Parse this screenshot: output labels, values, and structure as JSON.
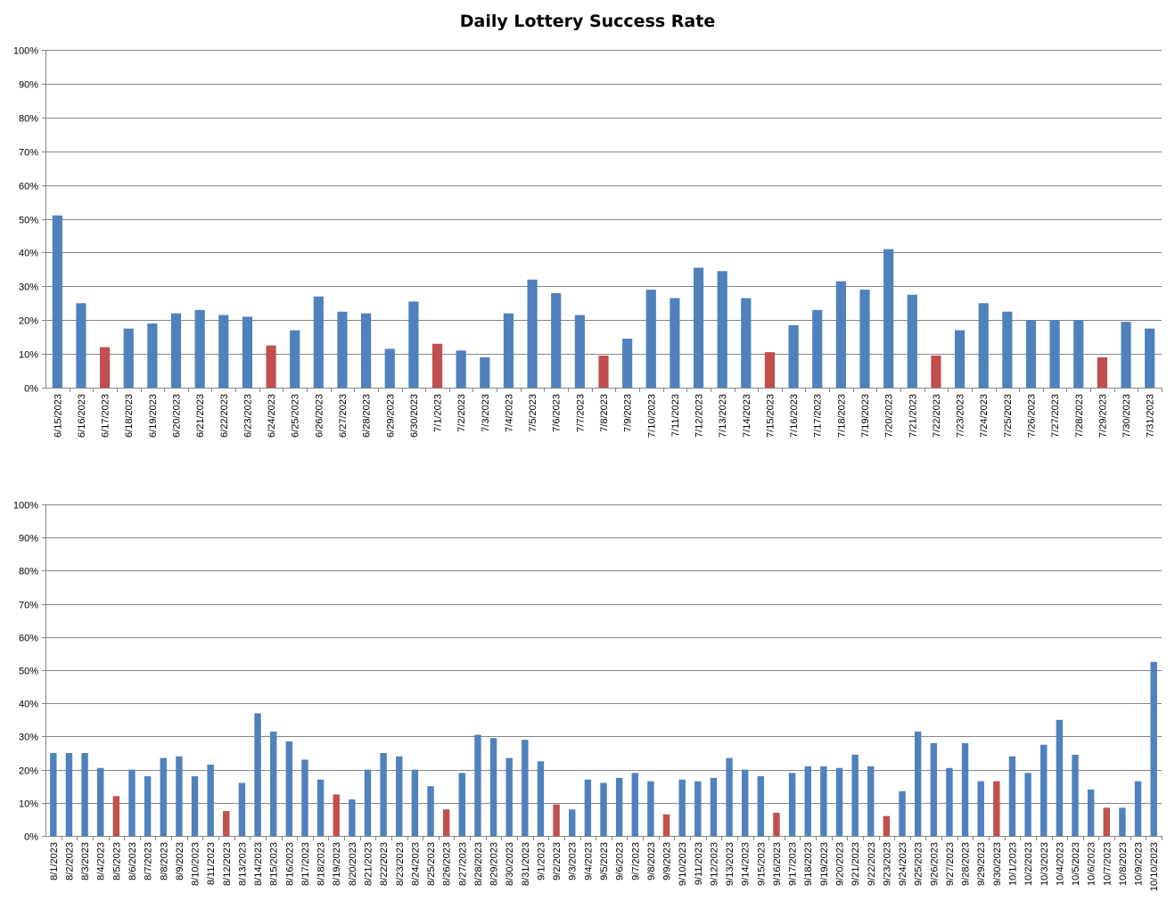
{
  "chart_data": [
    {
      "type": "bar",
      "title": "Daily Lottery Success Rate",
      "ylim": [
        0,
        100
      ],
      "yticks": [
        "0%",
        "10%",
        "20%",
        "30%",
        "40%",
        "50%",
        "60%",
        "70%",
        "80%",
        "90%",
        "100%"
      ],
      "grid": true,
      "colors": {
        "normal": "#4f81bd",
        "highlight": "#c0504d"
      },
      "categories": [
        "6/15/2023",
        "6/16/2023",
        "6/17/2023",
        "6/18/2023",
        "6/19/2023",
        "6/20/2023",
        "6/21/2023",
        "6/22/2023",
        "6/23/2023",
        "6/24/2023",
        "6/25/2023",
        "6/26/2023",
        "6/27/2023",
        "6/28/2023",
        "6/29/2023",
        "6/30/2023",
        "7/1/2023",
        "7/2/2023",
        "7/3/2023",
        "7/4/2023",
        "7/5/2023",
        "7/6/2023",
        "7/7/2023",
        "7/8/2023",
        "7/9/2023",
        "7/10/2023",
        "7/11/2023",
        "7/12/2023",
        "7/13/2023",
        "7/14/2023",
        "7/15/2023",
        "7/16/2023",
        "7/17/2023",
        "7/18/2023",
        "7/19/2023",
        "7/20/2023",
        "7/21/2023",
        "7/22/2023",
        "7/23/2023",
        "7/24/2023",
        "7/25/2023",
        "7/26/2023",
        "7/27/2023",
        "7/28/2023",
        "7/29/2023",
        "7/30/2023",
        "7/31/2023"
      ],
      "values": [
        51,
        25,
        12,
        17.5,
        19,
        22,
        23,
        21.5,
        21,
        12.5,
        17,
        27,
        22.5,
        22,
        11.5,
        25.5,
        13,
        11,
        9,
        22,
        32,
        28,
        21.5,
        9.5,
        14.5,
        29,
        26.5,
        35.5,
        34.5,
        26.5,
        10.5,
        18.5,
        23,
        31.5,
        29,
        41,
        27.5,
        9.5,
        17,
        25,
        22.5,
        20,
        20,
        20,
        9,
        19.5,
        17.5
      ],
      "highlight": [
        false,
        false,
        true,
        false,
        false,
        false,
        false,
        false,
        false,
        true,
        false,
        false,
        false,
        false,
        false,
        false,
        true,
        false,
        false,
        false,
        false,
        false,
        false,
        true,
        false,
        false,
        false,
        false,
        false,
        false,
        true,
        false,
        false,
        false,
        false,
        false,
        false,
        true,
        false,
        false,
        false,
        false,
        false,
        false,
        true,
        false,
        false
      ]
    },
    {
      "type": "bar",
      "ylim": [
        0,
        100
      ],
      "yticks": [
        "0%",
        "10%",
        "20%",
        "30%",
        "40%",
        "50%",
        "60%",
        "70%",
        "80%",
        "90%",
        "100%"
      ],
      "grid": true,
      "colors": {
        "normal": "#4f81bd",
        "highlight": "#c0504d"
      },
      "categories": [
        "8/1/2023",
        "8/2/2023",
        "8/3/2023",
        "8/4/2023",
        "8/5/2023",
        "8/6/2023",
        "8/7/2023",
        "8/8/2023",
        "8/9/2023",
        "8/10/2023",
        "8/11/2023",
        "8/12/2023",
        "8/13/2023",
        "8/14/2023",
        "8/15/2023",
        "8/16/2023",
        "8/17/2023",
        "8/18/2023",
        "8/19/2023",
        "8/20/2023",
        "8/21/2023",
        "8/22/2023",
        "8/23/2023",
        "8/24/2023",
        "8/25/2023",
        "8/26/2023",
        "8/27/2023",
        "8/28/2023",
        "8/29/2023",
        "8/30/2023",
        "8/31/2023",
        "9/1/2023",
        "9/2/2023",
        "9/3/2023",
        "9/4/2023",
        "9/5/2023",
        "9/6/2023",
        "9/7/2023",
        "9/8/2023",
        "9/9/2023",
        "9/10/2023",
        "9/11/2023",
        "9/12/2023",
        "9/13/2023",
        "9/14/2023",
        "9/15/2023",
        "9/16/2023",
        "9/17/2023",
        "9/18/2023",
        "9/19/2023",
        "9/20/2023",
        "9/21/2023",
        "9/22/2023",
        "9/23/2023",
        "9/24/2023",
        "9/25/2023",
        "9/26/2023",
        "9/27/2023",
        "9/28/2023",
        "9/29/2023",
        "9/30/2023",
        "10/1/2023",
        "10/2/2023",
        "10/3/2023",
        "10/4/2023",
        "10/5/2023",
        "10/6/2023",
        "10/7/2023",
        "10/8/2023",
        "10/9/2023",
        "10/10/2023"
      ],
      "values": [
        25,
        25,
        25,
        20.5,
        12,
        20,
        18,
        23.5,
        24,
        18,
        21.5,
        7.5,
        16,
        37,
        31.5,
        28.5,
        23,
        17,
        12.5,
        11,
        20,
        25,
        24,
        20,
        15,
        8,
        19,
        30.5,
        29.5,
        23.5,
        29,
        22.5,
        9.5,
        8,
        17,
        16,
        17.5,
        19,
        16.5,
        6.5,
        17,
        16.5,
        17.5,
        23.5,
        20,
        18,
        7,
        19,
        21,
        21,
        20.5,
        24.5,
        21,
        6,
        13.5,
        31.5,
        28,
        20.5,
        28,
        16.5,
        16.5,
        24,
        19,
        27.5,
        35,
        24.5,
        14,
        8.5,
        8.5,
        16.5,
        52.5
      ],
      "highlight": [
        false,
        false,
        false,
        false,
        true,
        false,
        false,
        false,
        false,
        false,
        false,
        true,
        false,
        false,
        false,
        false,
        false,
        false,
        true,
        false,
        false,
        false,
        false,
        false,
        false,
        true,
        false,
        false,
        false,
        false,
        false,
        false,
        true,
        false,
        false,
        false,
        false,
        false,
        false,
        true,
        false,
        false,
        false,
        false,
        false,
        false,
        true,
        false,
        false,
        false,
        false,
        false,
        false,
        true,
        false,
        false,
        false,
        false,
        false,
        false,
        true,
        false,
        false,
        false,
        false,
        false,
        false,
        true,
        false,
        false,
        false
      ]
    }
  ]
}
